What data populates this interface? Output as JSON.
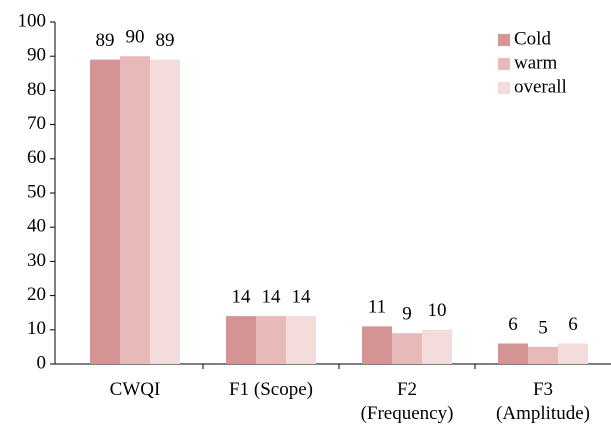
{
  "chart_data": {
    "type": "bar",
    "categories": [
      "CWQI",
      "F1 (Scope)",
      "F2\n(Frequency)",
      "F3\n(Amplitude)"
    ],
    "series": [
      {
        "name": "Cold",
        "color": "#d49494",
        "values": [
          89,
          14,
          11,
          6
        ]
      },
      {
        "name": "warm",
        "color": "#e8b9b9",
        "values": [
          90,
          14,
          9,
          5
        ]
      },
      {
        "name": "overall",
        "color": "#f4dcdc",
        "values": [
          89,
          14,
          10,
          6
        ]
      }
    ],
    "ylim": [
      0,
      100
    ],
    "yticks": [
      0,
      10,
      20,
      30,
      40,
      50,
      60,
      70,
      80,
      90,
      100
    ],
    "legend": "upper right",
    "grid": false
  }
}
